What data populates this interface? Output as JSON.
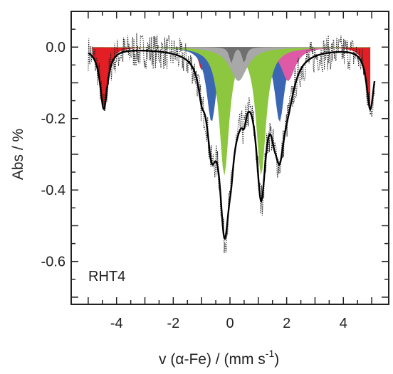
{
  "chart_data": {
    "type": "line",
    "title": "",
    "annotation": "RHT4",
    "xlabel": "v (α-Fe) / (mm s",
    "xlabel_sup": "-1",
    "xlabel_close": ")",
    "ylabel": "Abs / %",
    "xlim": [
      -5.6,
      5.6
    ],
    "ylim": [
      -0.72,
      0.1
    ],
    "x_ticks": [
      -4,
      -2,
      0,
      2,
      4
    ],
    "x_tick_labels": [
      "-4",
      "-2",
      "0",
      "2",
      "4"
    ],
    "y_ticks": [
      0.0,
      -0.2,
      -0.4,
      -0.6
    ],
    "y_tick_labels": [
      "0.0",
      "-0.2",
      "-0.4",
      "-0.6"
    ],
    "grid": false,
    "legend": "none",
    "components": [
      {
        "color": "#e31e24",
        "lines": [
          {
            "x": -4.45,
            "depth": 0.17,
            "width": 0.32
          },
          {
            "x": -1.0,
            "depth": 0.065,
            "width": 0.28
          },
          {
            "x": 1.55,
            "depth": 0.065,
            "width": 0.28
          },
          {
            "x": 4.95,
            "depth": 0.17,
            "width": 0.32
          }
        ]
      },
      {
        "color": "#3a66b4",
        "lines": [
          {
            "x": -0.65,
            "depth": 0.21,
            "width": 0.42
          },
          {
            "x": 1.75,
            "depth": 0.21,
            "width": 0.42
          }
        ]
      },
      {
        "color": "#de5aa6",
        "lines": [
          {
            "x": -0.05,
            "depth": 0.105,
            "width": 0.55
          },
          {
            "x": 2.05,
            "depth": 0.095,
            "width": 0.6
          }
        ]
      },
      {
        "color": "#8dc63f",
        "lines": [
          {
            "x": -0.2,
            "depth": 0.36,
            "width": 0.42
          },
          {
            "x": 1.1,
            "depth": 0.36,
            "width": 0.42
          }
        ]
      },
      {
        "color": "#a8a8a8",
        "lines": [
          {
            "x": 0.3,
            "depth": 0.095,
            "width": 0.75
          }
        ]
      },
      {
        "color": "#6f6f6f",
        "lines": [
          {
            "x": 0.05,
            "depth": 0.045,
            "width": 0.18
          },
          {
            "x": 0.5,
            "depth": 0.045,
            "width": 0.18
          }
        ]
      }
    ],
    "fit_color": "#000000",
    "data_color": "#222222",
    "noise_amplitude": 0.05
  }
}
